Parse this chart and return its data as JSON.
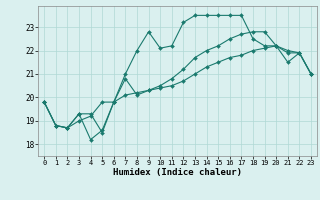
{
  "xlabel": "Humidex (Indice chaleur)",
  "x_values": [
    0,
    1,
    2,
    3,
    4,
    5,
    6,
    7,
    8,
    9,
    10,
    11,
    12,
    13,
    14,
    15,
    16,
    17,
    18,
    19,
    20,
    21,
    22,
    23
  ],
  "series": [
    [
      19.8,
      18.8,
      18.7,
      19.3,
      19.3,
      18.5,
      19.8,
      21.0,
      22.0,
      22.8,
      22.1,
      22.2,
      23.2,
      23.5,
      23.5,
      23.5,
      23.5,
      23.5,
      22.5,
      22.2,
      22.2,
      21.9,
      21.9,
      21.0
    ],
    [
      19.8,
      18.8,
      18.7,
      19.3,
      18.2,
      18.6,
      19.8,
      20.8,
      20.1,
      20.3,
      20.5,
      20.8,
      21.2,
      21.7,
      22.0,
      22.2,
      22.5,
      22.7,
      22.8,
      22.8,
      22.2,
      21.5,
      21.9,
      21.0
    ],
    [
      19.8,
      18.8,
      18.7,
      19.0,
      19.2,
      19.8,
      19.8,
      20.1,
      20.2,
      20.3,
      20.4,
      20.5,
      20.7,
      21.0,
      21.3,
      21.5,
      21.7,
      21.8,
      22.0,
      22.1,
      22.2,
      22.0,
      21.9,
      21.0
    ]
  ],
  "line_color": "#1a7a6e",
  "marker_color": "#1a7a6e",
  "background_color": "#daf0ef",
  "grid_color": "#b0d8d5",
  "ylim": [
    17.5,
    23.9
  ],
  "yticks": [
    18,
    19,
    20,
    21,
    22,
    23
  ],
  "xlim": [
    -0.5,
    23.5
  ],
  "xticks": [
    0,
    1,
    2,
    3,
    4,
    5,
    6,
    7,
    8,
    9,
    10,
    11,
    12,
    13,
    14,
    15,
    16,
    17,
    18,
    19,
    20,
    21,
    22,
    23
  ]
}
